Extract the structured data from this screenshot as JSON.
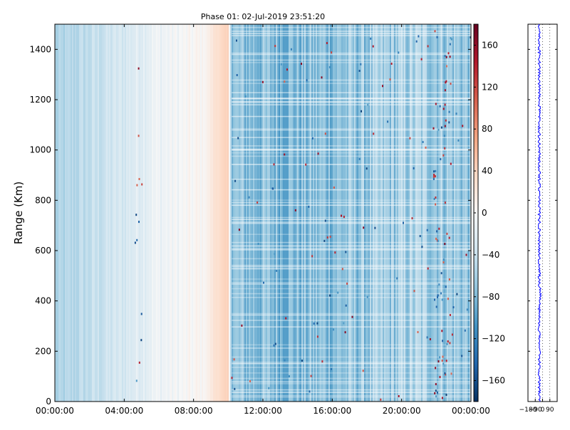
{
  "chart_data": [
    {
      "type": "heatmap",
      "title": "Phase 01: 02-Jul-2019 23:51:20",
      "xlabel": "",
      "ylabel": "Range (Km)",
      "xlim": [
        "00:00:00",
        "24:00:00"
      ],
      "ylim": [
        0,
        1500
      ],
      "x_tick_labels": [
        "00:00:00",
        "04:00:00",
        "08:00:00",
        "12:00:00",
        "16:00:00",
        "20:00:00",
        "00:00:00"
      ],
      "x_ticks_hours": [
        0,
        4,
        8,
        12,
        16,
        20,
        24
      ],
      "y_ticks": [
        0,
        200,
        400,
        600,
        800,
        1000,
        1200,
        1400
      ],
      "colormap": "RdBu_r",
      "color_range": [
        -180,
        180
      ],
      "colorbar_ticks": [
        160,
        120,
        80,
        40,
        0,
        -40,
        -80,
        -120,
        -160
      ],
      "colorbar_tick_labels": [
        "160",
        "120",
        "80",
        "40",
        "0",
        "−40",
        "−80",
        "−120",
        "−160"
      ],
      "phase_by_time": [
        {
          "hour": 0.0,
          "phase": -60
        },
        {
          "hour": 2.0,
          "phase": -45
        },
        {
          "hour": 4.0,
          "phase": -30
        },
        {
          "hour": 5.5,
          "phase": -12
        },
        {
          "hour": 7.0,
          "phase": -5
        },
        {
          "hour": 8.0,
          "phase": 0
        },
        {
          "hour": 8.8,
          "phase": 8
        },
        {
          "hour": 9.3,
          "phase": 30
        },
        {
          "hour": 10.0,
          "phase": 40
        },
        {
          "hour": 10.2,
          "phase": -75
        },
        {
          "hour": 14.0,
          "phase": -80
        },
        {
          "hour": 18.0,
          "phase": -70
        },
        {
          "hour": 21.0,
          "phase": -60
        },
        {
          "hour": 22.5,
          "phase": -65
        },
        {
          "hour": 24.0,
          "phase": -70
        }
      ]
    },
    {
      "type": "line",
      "title": "",
      "x_tick_labels": [
        "−180",
        "−90",
        "0",
        "90"
      ],
      "x_ticks": [
        -180,
        -90,
        0,
        90
      ],
      "xlim": [
        -180,
        180
      ],
      "ylim": [
        0,
        1500
      ],
      "series_color": "#0000ff",
      "profile_mean_phase": -40
    }
  ]
}
